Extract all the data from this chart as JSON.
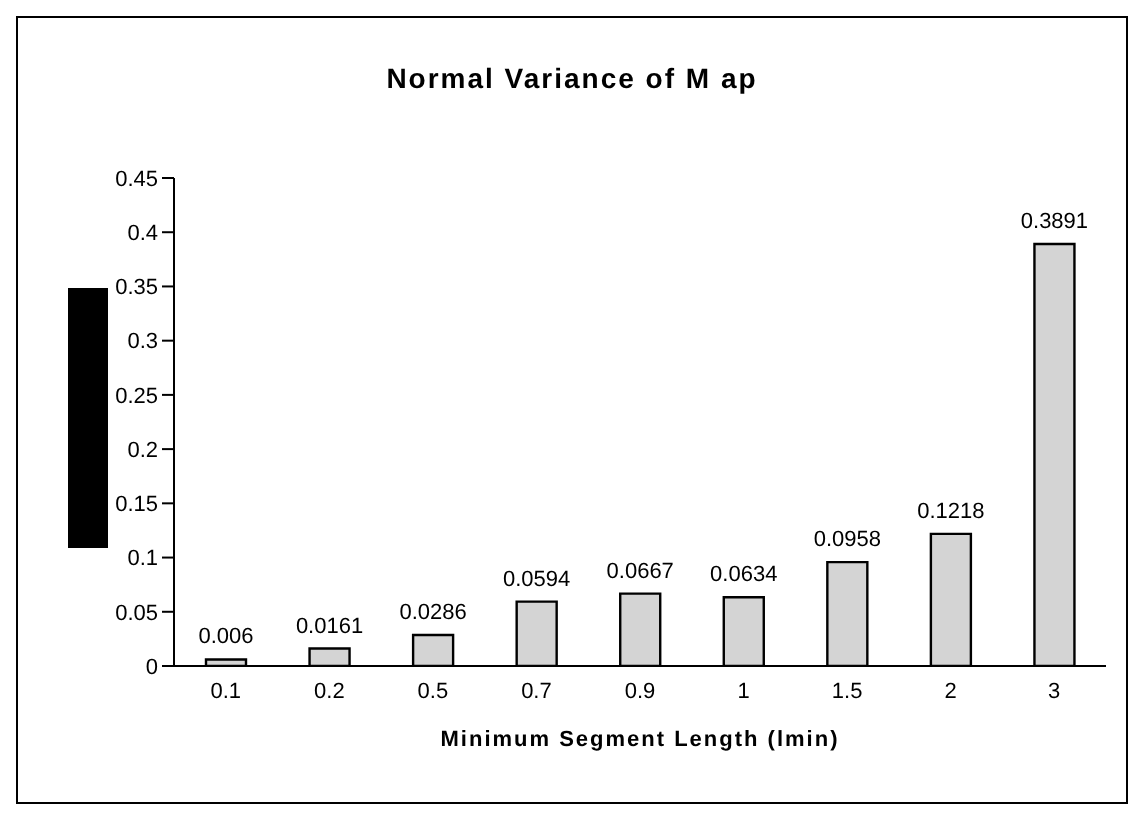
{
  "chart_data": {
    "type": "bar",
    "title": "Normal Variance of M ap",
    "xlabel": "Minimum Segment Length (lmin)",
    "categories": [
      "0.1",
      "0.2",
      "0.5",
      "0.7",
      "0.9",
      "1",
      "1.5",
      "2",
      "3"
    ],
    "values": [
      0.006,
      0.0161,
      0.0286,
      0.0594,
      0.0667,
      0.0634,
      0.0958,
      0.1218,
      0.3891
    ],
    "color": "#d4d4d4",
    "ylim": [
      0,
      0.45
    ],
    "yticks": [
      0,
      0.05,
      0.1,
      0.15,
      0.2,
      0.25,
      0.3,
      0.35,
      0.4,
      0.45
    ],
    "grid": false,
    "data_labels": true
  }
}
